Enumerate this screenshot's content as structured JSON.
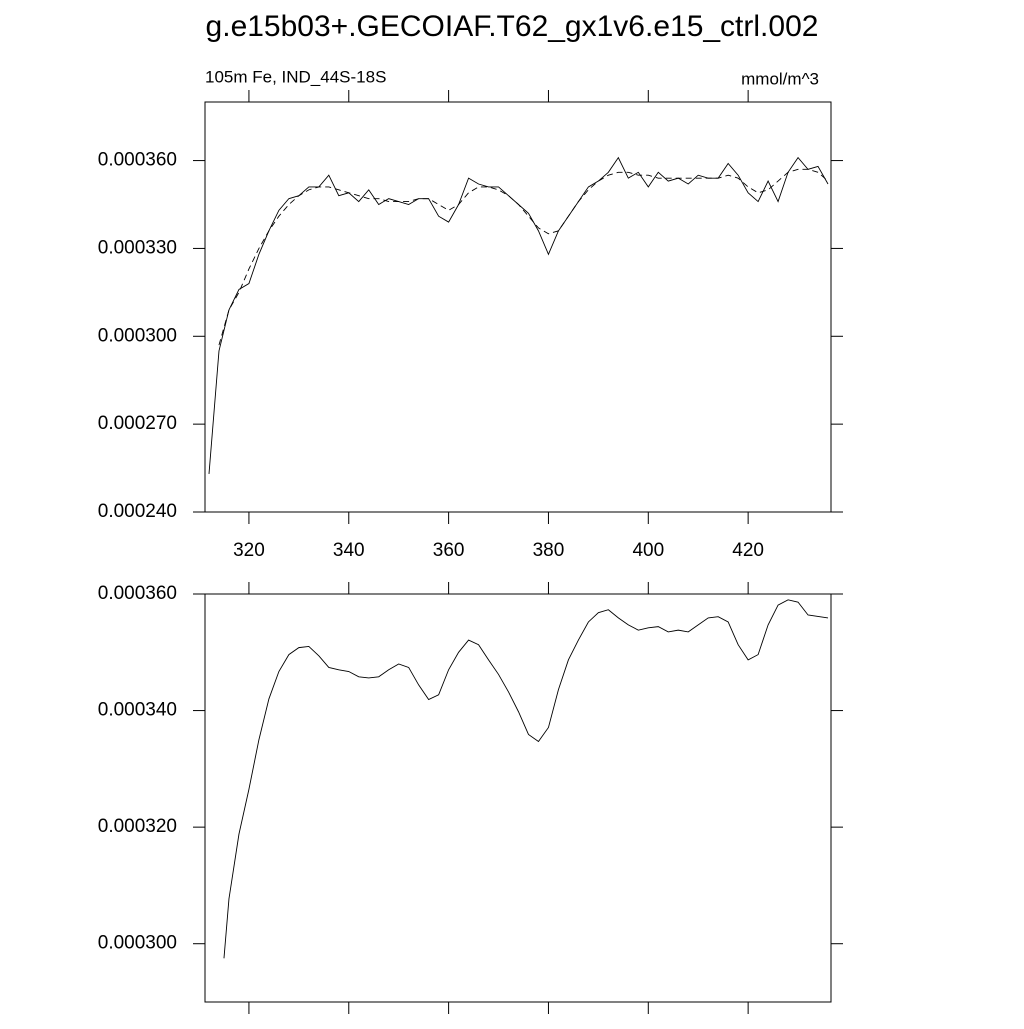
{
  "title": "g.e15b03+.GECOIAF.T62_gx1v6.e15_ctrl.002",
  "chart_data": [
    {
      "type": "line",
      "subtitle_left": "105m Fe, IND_44S-18S",
      "subtitle_right": "mmol/m^3",
      "xlim": [
        311.2,
        436.6
      ],
      "xticks": [
        320,
        340,
        360,
        380,
        400,
        420
      ],
      "xtick_labels": true,
      "ylim": [
        0.00024,
        0.00038
      ],
      "yticks": [
        {
          "value": 0.00024,
          "label": "0.000240"
        },
        {
          "value": 0.00027,
          "label": "0.000270"
        },
        {
          "value": 0.0003,
          "label": "0.000300"
        },
        {
          "value": 0.00033,
          "label": "0.000330"
        },
        {
          "value": 0.00036,
          "label": "0.000360"
        }
      ],
      "series": [
        {
          "color": "#000000",
          "dash": "solid",
          "x": [
            312,
            314,
            316,
            318,
            320,
            322,
            324,
            326,
            328,
            330,
            332,
            334,
            336,
            338,
            340,
            342,
            344,
            346,
            348,
            350,
            352,
            354,
            356,
            358,
            360,
            362,
            364,
            366,
            368,
            370,
            372,
            374,
            376,
            378,
            380,
            382,
            384,
            386,
            388,
            390,
            392,
            394,
            396,
            398,
            400,
            402,
            404,
            406,
            408,
            410,
            412,
            414,
            416,
            418,
            420,
            422,
            424,
            426,
            428,
            430,
            432,
            434,
            436
          ],
          "values": [
            0.000253,
            0.000295,
            0.000309,
            0.000316,
            0.000318,
            0.000328,
            0.000336,
            0.000343,
            0.000347,
            0.000348,
            0.000351,
            0.000351,
            0.000355,
            0.000348,
            0.000349,
            0.000346,
            0.00035,
            0.000345,
            0.000347,
            0.000346,
            0.000345,
            0.000347,
            0.000347,
            0.000341,
            0.000339,
            0.000345,
            0.000354,
            0.000352,
            0.000351,
            0.000351,
            0.000348,
            0.000345,
            0.000342,
            0.000336,
            0.000328,
            0.000336,
            0.000341,
            0.000346,
            0.000351,
            0.000353,
            0.000356,
            0.000361,
            0.000354,
            0.000356,
            0.000351,
            0.000356,
            0.000353,
            0.000354,
            0.000352,
            0.000355,
            0.000354,
            0.000354,
            0.000359,
            0.000355,
            0.000349,
            0.000346,
            0.000353,
            0.000346,
            0.000356,
            0.000361,
            0.000357,
            0.000358,
            0.000352
          ]
        },
        {
          "color": "#000000",
          "dash": "dashed",
          "x": [
            314,
            316,
            318,
            320,
            322,
            324,
            326,
            328,
            330,
            332,
            334,
            336,
            338,
            340,
            342,
            344,
            346,
            348,
            350,
            352,
            354,
            356,
            358,
            360,
            362,
            364,
            366,
            368,
            370,
            372,
            374,
            376,
            378,
            380,
            382,
            384,
            386,
            388,
            390,
            392,
            394,
            396,
            398,
            400,
            402,
            404,
            406,
            408,
            410,
            412,
            414,
            416,
            418,
            420,
            422,
            424,
            426,
            428,
            430,
            432,
            434,
            436
          ],
          "values": [
            0.000297,
            0.000309,
            0.000315,
            0.000323,
            0.00033,
            0.000336,
            0.000341,
            0.000345,
            0.000348,
            0.00035,
            0.000351,
            0.000351,
            0.00035,
            0.000349,
            0.000348,
            0.000347,
            0.000347,
            0.000346,
            0.000346,
            0.000346,
            0.000347,
            0.000347,
            0.000345,
            0.000343,
            0.000345,
            0.000349,
            0.000351,
            0.000351,
            0.00035,
            0.000348,
            0.000345,
            0.000341,
            0.000337,
            0.000335,
            0.000336,
            0.000341,
            0.000346,
            0.00035,
            0.000353,
            0.000355,
            0.000356,
            0.000356,
            0.000355,
            0.000355,
            0.000354,
            0.000354,
            0.000354,
            0.000354,
            0.000354,
            0.000354,
            0.000354,
            0.000355,
            0.000354,
            0.000351,
            0.000349,
            0.00035,
            0.000353,
            0.000356,
            0.000357,
            0.000357,
            0.000356,
            0.000353
          ]
        }
      ]
    },
    {
      "type": "line",
      "xlim": [
        311.2,
        436.6
      ],
      "xticks": [
        320,
        340,
        360,
        380,
        400,
        420
      ],
      "xtick_labels": false,
      "ylim": [
        0.00029,
        0.00036
      ],
      "yticks": [
        {
          "value": 0.0003,
          "label": "0.000300"
        },
        {
          "value": 0.00032,
          "label": "0.000320"
        },
        {
          "value": 0.00034,
          "label": "0.000340"
        },
        {
          "value": 0.00036,
          "label": "0.000360"
        }
      ],
      "series": [
        {
          "color": "#000000",
          "dash": "solid",
          "x": [
            315,
            316,
            318,
            320,
            322,
            324,
            326,
            328,
            330,
            332,
            334,
            336,
            338,
            340,
            342,
            344,
            346,
            348,
            350,
            352,
            354,
            356,
            358,
            360,
            362,
            364,
            366,
            368,
            370,
            372,
            374,
            376,
            378,
            380,
            382,
            384,
            386,
            388,
            390,
            392,
            394,
            396,
            398,
            400,
            402,
            404,
            406,
            408,
            410,
            412,
            414,
            416,
            418,
            420,
            422,
            424,
            426,
            428,
            430,
            432,
            436
          ],
          "values": [
            0.0002975,
            0.0003077,
            0.0003188,
            0.0003265,
            0.000335,
            0.000342,
            0.0003467,
            0.0003496,
            0.0003508,
            0.000351,
            0.0003494,
            0.0003474,
            0.000347,
            0.0003467,
            0.0003458,
            0.0003456,
            0.0003458,
            0.000347,
            0.000348,
            0.0003474,
            0.0003444,
            0.0003419,
            0.0003427,
            0.000347,
            0.00035,
            0.0003521,
            0.0003513,
            0.0003487,
            0.0003462,
            0.0003432,
            0.0003398,
            0.0003359,
            0.0003347,
            0.0003371,
            0.0003436,
            0.0003487,
            0.0003521,
            0.0003552,
            0.0003568,
            0.0003573,
            0.0003559,
            0.0003547,
            0.0003538,
            0.0003542,
            0.0003544,
            0.0003535,
            0.0003538,
            0.0003535,
            0.0003547,
            0.0003559,
            0.0003561,
            0.0003552,
            0.0003513,
            0.0003487,
            0.0003496,
            0.0003547,
            0.0003581,
            0.000359,
            0.0003586,
            0.0003564,
            0.0003559
          ]
        }
      ]
    }
  ]
}
